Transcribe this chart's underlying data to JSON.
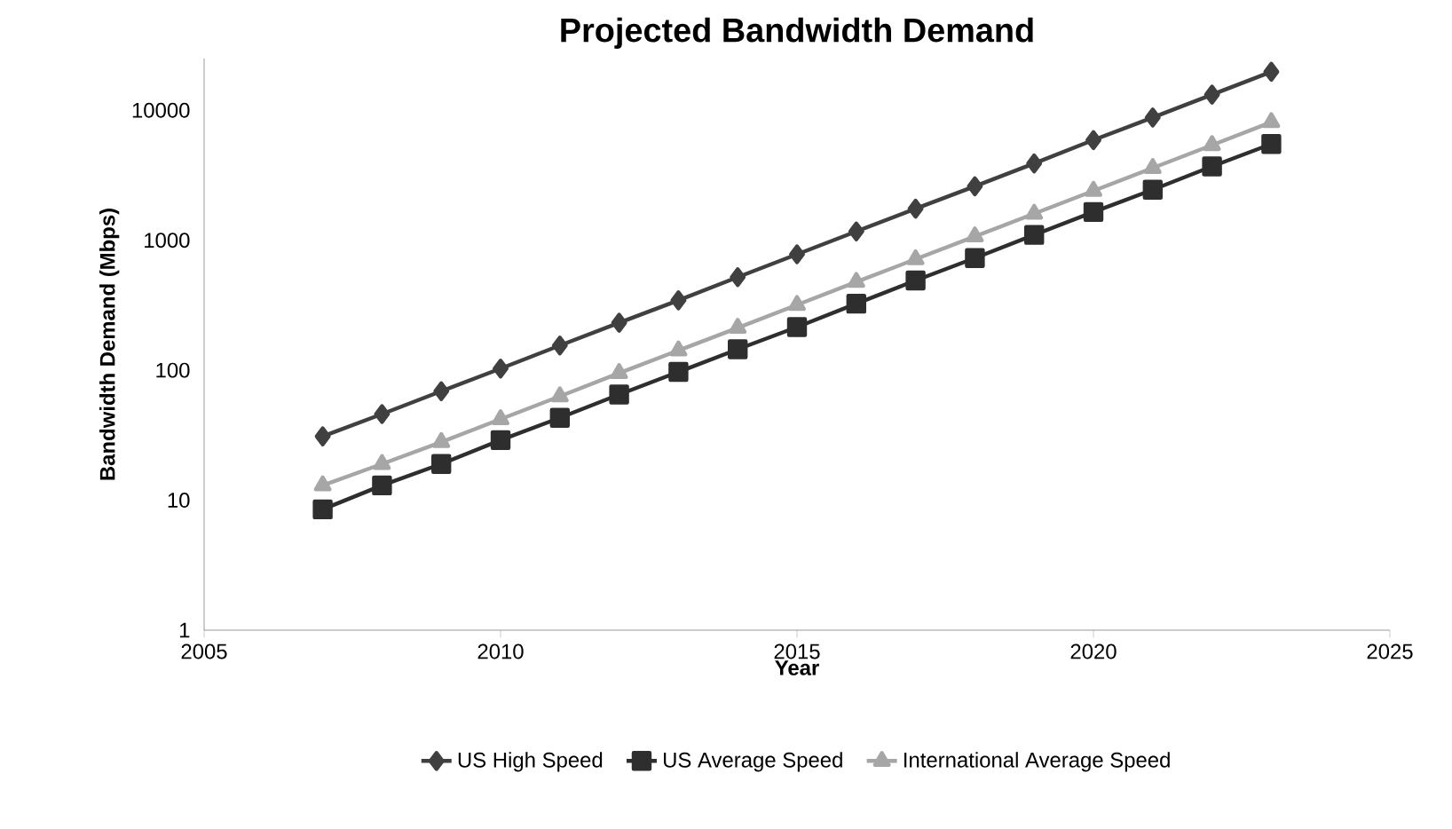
{
  "chart_data": {
    "type": "line",
    "title": "Projected Bandwidth Demand",
    "xlabel": "Year",
    "ylabel": "Bandwidth Demand (Mbps)",
    "x": [
      2007,
      2008,
      2009,
      2010,
      2011,
      2012,
      2013,
      2014,
      2015,
      2016,
      2017,
      2018,
      2019,
      2020,
      2021,
      2022,
      2023
    ],
    "series": [
      {
        "name": "US High Speed",
        "color": "#404040",
        "marker": "diamond",
        "values": [
          31,
          46,
          69,
          103,
          155,
          232,
          345,
          520,
          780,
          1170,
          1750,
          2600,
          3900,
          5900,
          8800,
          13200,
          19800
        ]
      },
      {
        "name": "US Average Speed",
        "color": "#2e2e2e",
        "marker": "square",
        "values": [
          8.5,
          13,
          19,
          29,
          43,
          65,
          97,
          145,
          215,
          325,
          490,
          730,
          1100,
          1650,
          2450,
          3700,
          5500
        ]
      },
      {
        "name": "International Average Speed",
        "color": "#a6a6a6",
        "marker": "triangle",
        "values": [
          13,
          19,
          28,
          42,
          63,
          95,
          142,
          212,
          318,
          478,
          715,
          1070,
          1600,
          2400,
          3600,
          5400,
          8100
        ]
      }
    ],
    "xlim": [
      2005,
      2025
    ],
    "xticks": [
      2005,
      2010,
      2015,
      2020,
      2025
    ],
    "ylim": [
      1,
      25000
    ],
    "yticks": [
      1,
      10,
      100,
      1000,
      10000
    ],
    "log": "y",
    "grid": false,
    "legend": "bottom",
    "line_style": "solid"
  }
}
